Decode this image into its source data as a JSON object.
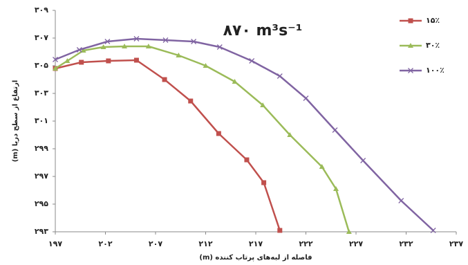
{
  "chart_data": {
    "type": "line",
    "annotation": "۸۷۰ m³s⁻¹",
    "xlabel": "فاصله از لبه‌های پرتاب کننده (m)",
    "ylabel": "ارتفاع از سطح دریا (m)",
    "xlim": [
      197,
      237
    ],
    "xticks": [
      {
        "value": 197,
        "label": "۱۹۷"
      },
      {
        "value": 202,
        "label": "۲۰۲"
      },
      {
        "value": 207,
        "label": "۲۰۷"
      },
      {
        "value": 212,
        "label": "۲۱۲"
      },
      {
        "value": 217,
        "label": "۲۱۷"
      },
      {
        "value": 222,
        "label": "۲۲۲"
      },
      {
        "value": 227,
        "label": "۲۲۷"
      },
      {
        "value": 232,
        "label": "۲۳۲"
      },
      {
        "value": 237,
        "label": "۲۳۷"
      }
    ],
    "ylim": [
      293,
      309
    ],
    "yticks": [
      {
        "value": 293,
        "label": "۲۹۳"
      },
      {
        "value": 295,
        "label": "۲۹۵"
      },
      {
        "value": 297,
        "label": "۲۹۷"
      },
      {
        "value": 299,
        "label": "۲۹۹"
      },
      {
        "value": 301,
        "label": "۳۰۱"
      },
      {
        "value": 303,
        "label": "۳۰۳"
      },
      {
        "value": 305,
        "label": "۳۰۵"
      },
      {
        "value": 307,
        "label": "۳۰۷"
      },
      {
        "value": 309,
        "label": "۳۰۹"
      }
    ],
    "grid": false,
    "legend": "upper right",
    "series": [
      {
        "name": "۱۵٪",
        "color": "#c0504d",
        "marker": "square",
        "x": [
          197,
          199.6,
          202.3,
          205.1,
          207.9,
          210.5,
          213.3,
          216.1,
          217.8,
          219.4
        ],
        "values": [
          304.8,
          305.25,
          305.35,
          305.4,
          304.0,
          302.45,
          300.1,
          298.2,
          296.55,
          293.1
        ]
      },
      {
        "name": "۳۰٪",
        "color": "#9bbb59",
        "marker": "triangle",
        "x": [
          197,
          198.2,
          199.8,
          201.8,
          203.9,
          206.3,
          209.3,
          212.0,
          214.9,
          217.7,
          220.4,
          223.6,
          225.0,
          226.3
        ],
        "values": [
          304.8,
          305.35,
          306.1,
          306.35,
          306.4,
          306.4,
          305.75,
          305.0,
          303.85,
          302.15,
          300.0,
          297.7,
          296.1,
          293.0
        ]
      },
      {
        "name": "۱۰۰٪",
        "color": "#8064a2",
        "marker": "x",
        "x": [
          197,
          199.4,
          202.2,
          205.1,
          208.0,
          210.8,
          213.4,
          216.6,
          219.4,
          222.0,
          224.9,
          227.7,
          231.5,
          234.7
        ],
        "values": [
          305.45,
          306.15,
          306.75,
          306.95,
          306.85,
          306.75,
          306.35,
          305.35,
          304.25,
          302.65,
          300.35,
          298.15,
          295.25,
          293.1
        ]
      }
    ]
  }
}
